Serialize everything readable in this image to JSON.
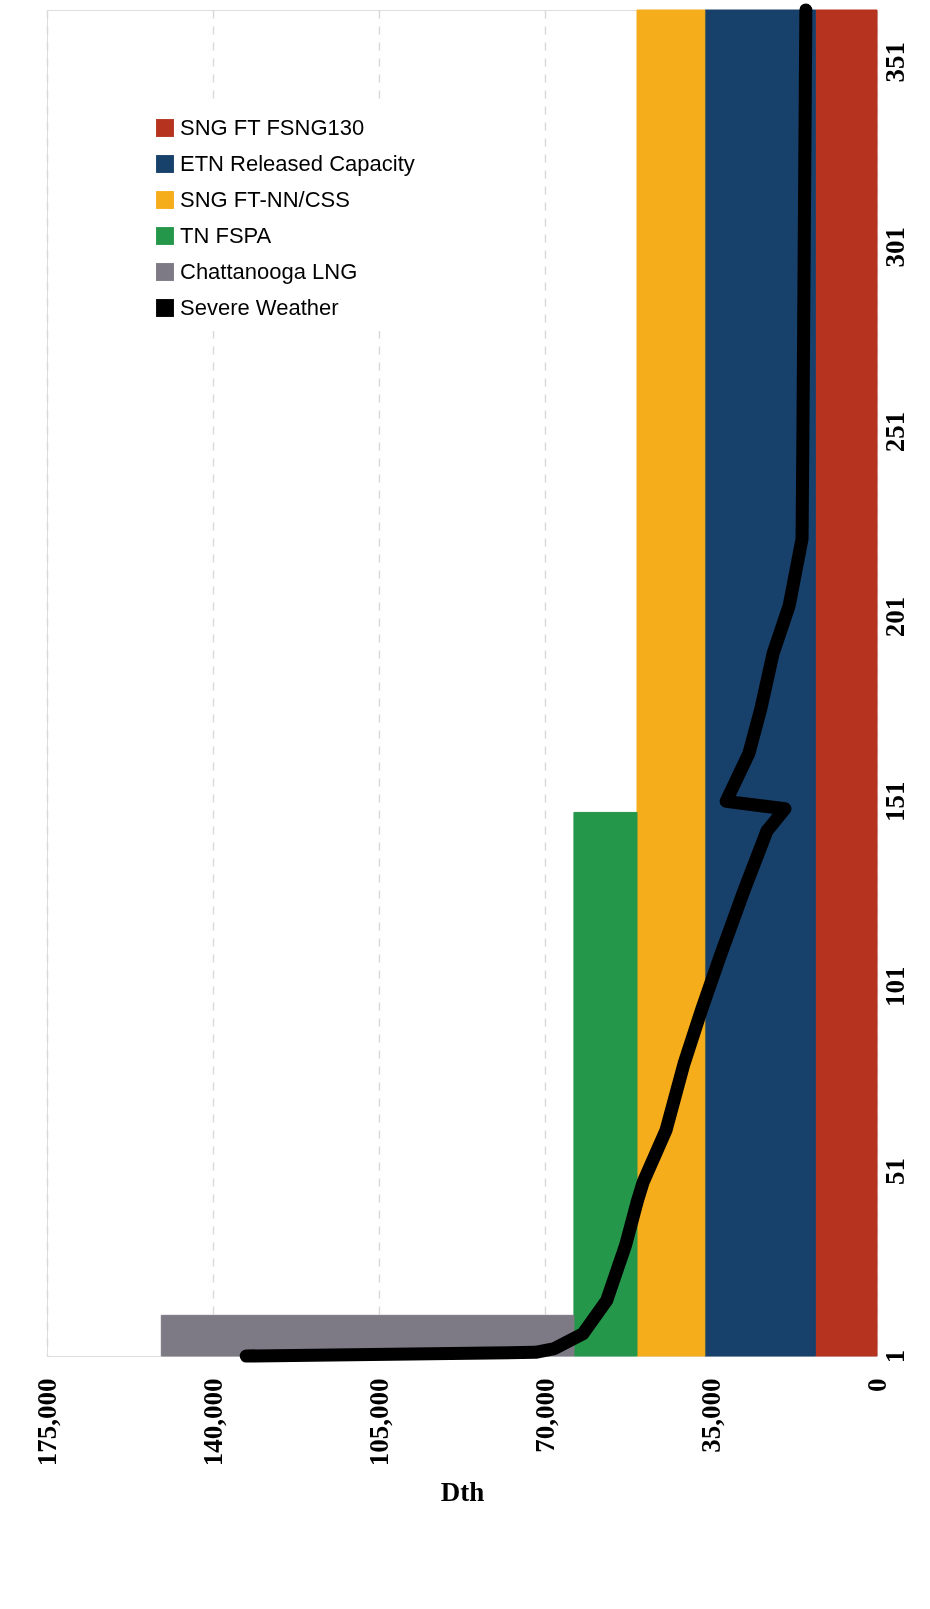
{
  "chart_data": {
    "type": "area",
    "orientation": "horizontal",
    "stacked": true,
    "xlabel": "Dth",
    "xlim": [
      175000,
      0
    ],
    "xticks": [
      0,
      {
        "value": 35000,
        "label": "35,000"
      },
      {
        "value": 70000,
        "label": "70,000"
      },
      {
        "value": 105000,
        "label": "105,000"
      },
      {
        "value": 140000,
        "label": "140,000"
      },
      {
        "value": 175000,
        "label": "175,000"
      }
    ],
    "ylim": [
      1,
      365
    ],
    "yticks": [
      1,
      51,
      101,
      151,
      201,
      251,
      301,
      351
    ],
    "grid": "x",
    "legend": "top left",
    "series": [
      {
        "name": "SNG FT FSNG130",
        "color": "#b5331f",
        "x": [
          1,
          365
        ],
        "values": [
          13000,
          13000
        ]
      },
      {
        "name": "ETN Released Capacity",
        "color": "#17406b",
        "x": [
          1,
          365
        ],
        "values": [
          23300,
          23300
        ]
      },
      {
        "name": "SNG FT-NN/CSS",
        "color": "#f5ad1b",
        "x": [
          1,
          365
        ],
        "values": [
          14300,
          14300
        ]
      },
      {
        "name": "TN FSPA",
        "color": "#24974a",
        "x": [
          1,
          148
        ],
        "values": [
          13300,
          13300
        ]
      },
      {
        "name": "Chattanooga LNG",
        "color": "#7d7a85",
        "x": [
          1,
          12
        ],
        "values": [
          87000,
          87000
        ]
      },
      {
        "name": "Severe Weather",
        "color": "#000000",
        "type": "line",
        "x": [
          1,
          2,
          3,
          7,
          16,
          31,
          43,
          48,
          62,
          80,
          95,
          109,
          127,
          143,
          149,
          151,
          164,
          176,
          191,
          204,
          222,
          254,
          365
        ],
        "values": [
          133000,
          72000,
          68000,
          62000,
          57000,
          53000,
          50500,
          49300,
          44500,
          40700,
          36900,
          33100,
          28000,
          23200,
          19400,
          31800,
          27000,
          24500,
          21900,
          18500,
          15800,
          15600,
          15000
        ]
      }
    ]
  }
}
